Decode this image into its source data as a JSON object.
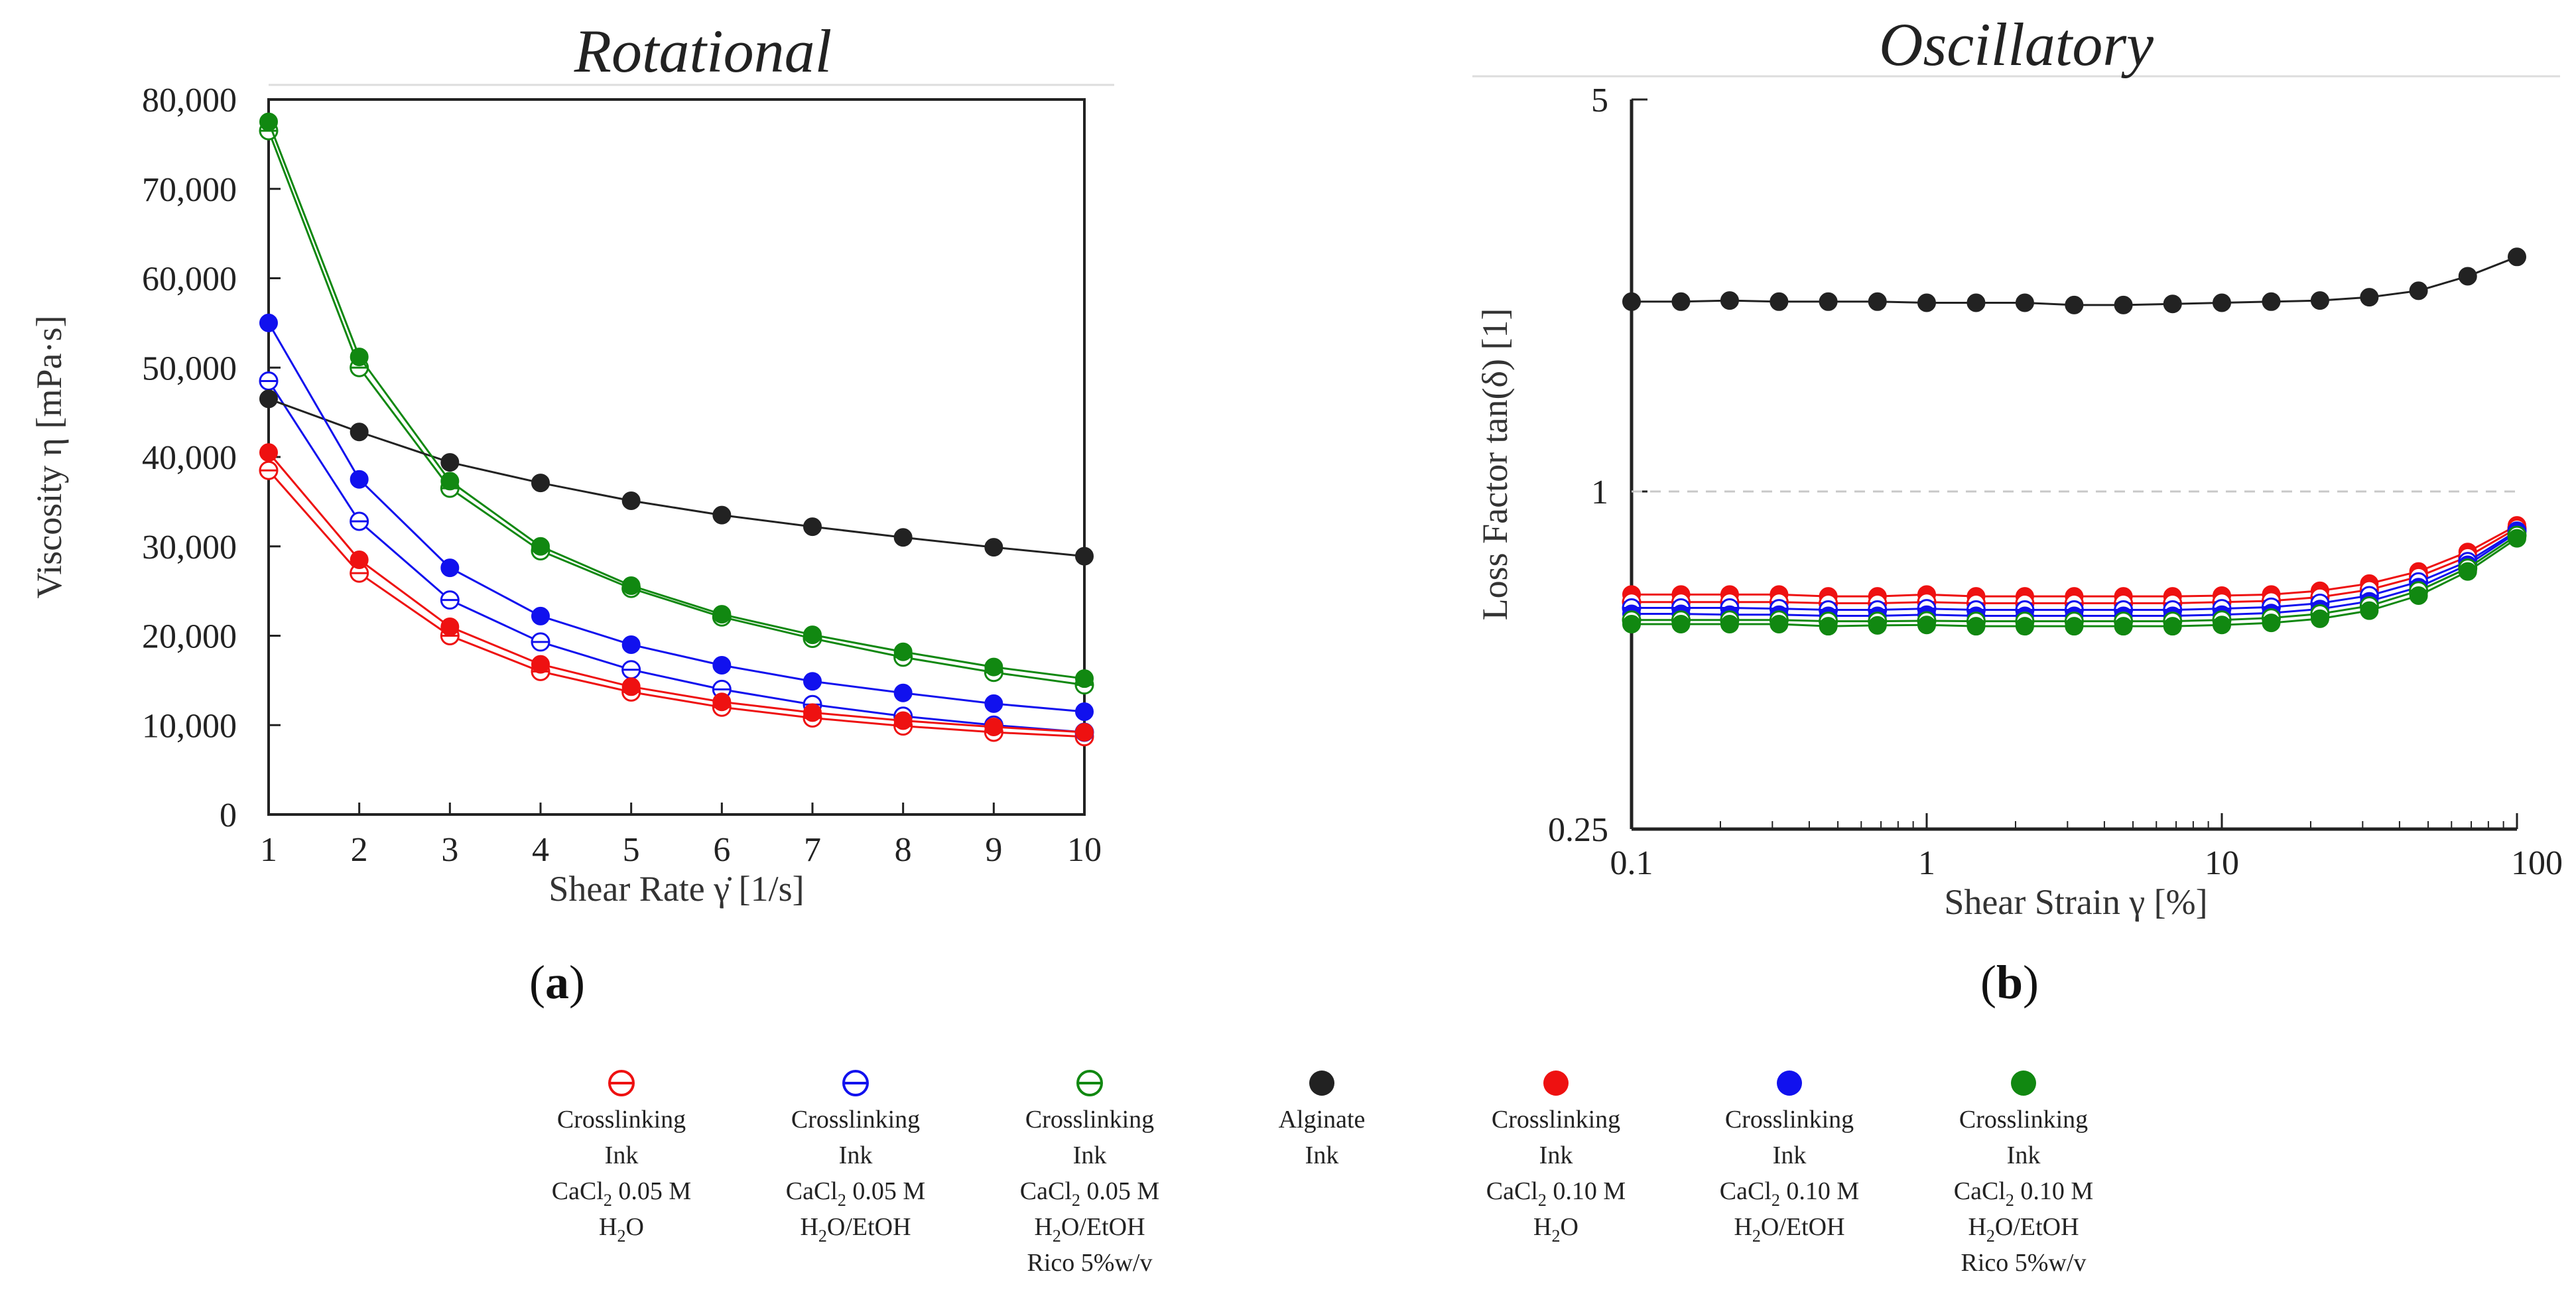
{
  "colors": {
    "red": "#ee1111",
    "blue": "#1111ee",
    "green": "#118811",
    "black": "#222222",
    "axis": "#222222",
    "ref_line": "#c8c8c8"
  },
  "panels": {
    "a": {
      "label_open": "(",
      "label_letter": "a",
      "label_close": ")"
    },
    "b": {
      "label_open": "(",
      "label_letter": "b",
      "label_close": ")"
    }
  },
  "chart_data": [
    {
      "id": "a",
      "type": "line",
      "title": "Rotational",
      "xlabel": "Shear Rate γ̇ [1/s]",
      "ylabel": "Viscosity η [mPa·s]",
      "xlim": [
        1,
        10
      ],
      "ylim": [
        0,
        80000
      ],
      "xticks": [
        1,
        2,
        3,
        4,
        5,
        6,
        7,
        8,
        9,
        10
      ],
      "xtick_labels": [
        "1",
        "2",
        "3",
        "4",
        "5",
        "6",
        "7",
        "8",
        "9",
        "10"
      ],
      "yticks": [
        0,
        10000,
        20000,
        30000,
        40000,
        50000,
        60000,
        70000,
        80000
      ],
      "ytick_labels": [
        "0",
        "10,000",
        "20,000",
        "30,000",
        "40,000",
        "50,000",
        "60,000",
        "70,000",
        "80,000"
      ],
      "x": [
        1,
        2,
        3,
        4,
        5,
        6,
        7,
        8,
        9,
        10
      ],
      "series": [
        {
          "key": "cl005_h2o",
          "color": "red",
          "filled": false,
          "values": [
            38500,
            27000,
            20000,
            16000,
            13700,
            12000,
            10800,
            9900,
            9200,
            8700
          ]
        },
        {
          "key": "cl005_etoh",
          "color": "blue",
          "filled": false,
          "values": [
            48500,
            32800,
            24000,
            19300,
            16200,
            14000,
            12300,
            11000,
            10000,
            9200
          ]
        },
        {
          "key": "cl005_rico",
          "color": "green",
          "filled": false,
          "values": [
            76500,
            50000,
            36500,
            29500,
            25300,
            22100,
            19700,
            17600,
            15900,
            14500
          ]
        },
        {
          "key": "alginate",
          "color": "black",
          "filled": true,
          "values": [
            46500,
            42800,
            39400,
            37100,
            35100,
            33500,
            32200,
            31000,
            29900,
            28900
          ]
        },
        {
          "key": "cl010_h2o",
          "color": "red",
          "filled": true,
          "values": [
            40500,
            28500,
            21000,
            16800,
            14300,
            12600,
            11400,
            10500,
            9800,
            9200
          ]
        },
        {
          "key": "cl010_etoh",
          "color": "blue",
          "filled": true,
          "values": [
            55000,
            37500,
            27600,
            22200,
            19000,
            16700,
            14900,
            13600,
            12400,
            11500
          ]
        },
        {
          "key": "cl010_rico",
          "color": "green",
          "filled": true,
          "values": [
            77500,
            51200,
            37300,
            30000,
            25600,
            22400,
            20100,
            18200,
            16500,
            15200
          ]
        }
      ]
    },
    {
      "id": "b",
      "type": "line",
      "title": "Oscillatory",
      "xlabel": "Shear Strain γ [%]",
      "ylabel": "Loss Factor tan(δ) [1]",
      "xscale": "log",
      "yscale": "log",
      "xlim": [
        0.1,
        100
      ],
      "ylim": [
        0.25,
        5
      ],
      "xticks": [
        0.1,
        1,
        10,
        100
      ],
      "xtick_labels": [
        "0.1",
        "1",
        "10",
        "100"
      ],
      "yticks": [
        0.25,
        1,
        5
      ],
      "ytick_labels": [
        "0.25",
        "1",
        "5"
      ],
      "reference_line": 1,
      "x": [
        0.1,
        0.147,
        0.215,
        0.316,
        0.464,
        0.681,
        1,
        1.47,
        2.15,
        3.16,
        4.64,
        6.81,
        10,
        14.7,
        21.5,
        31.6,
        46.4,
        68.1,
        100
      ],
      "series": [
        {
          "key": "alginate",
          "color": "black",
          "filled": true,
          "values": [
            2.18,
            2.18,
            2.19,
            2.18,
            2.18,
            2.18,
            2.17,
            2.17,
            2.17,
            2.15,
            2.15,
            2.16,
            2.17,
            2.18,
            2.19,
            2.22,
            2.28,
            2.42,
            2.62
          ]
        },
        {
          "key": "cl010_h2o",
          "color": "red",
          "filled": true,
          "values": [
            0.655,
            0.655,
            0.655,
            0.655,
            0.65,
            0.65,
            0.655,
            0.65,
            0.65,
            0.65,
            0.65,
            0.65,
            0.652,
            0.655,
            0.665,
            0.685,
            0.72,
            0.78,
            0.87
          ]
        },
        {
          "key": "cl005_h2o",
          "color": "red",
          "filled": false,
          "values": [
            0.635,
            0.635,
            0.635,
            0.635,
            0.632,
            0.632,
            0.635,
            0.632,
            0.632,
            0.632,
            0.632,
            0.632,
            0.635,
            0.638,
            0.648,
            0.668,
            0.705,
            0.765,
            0.86
          ]
        },
        {
          "key": "cl005_etoh",
          "color": "blue",
          "filled": false,
          "values": [
            0.62,
            0.62,
            0.62,
            0.618,
            0.615,
            0.615,
            0.618,
            0.615,
            0.615,
            0.615,
            0.615,
            0.615,
            0.618,
            0.622,
            0.632,
            0.652,
            0.69,
            0.75,
            0.85
          ]
        },
        {
          "key": "cl010_etoh",
          "color": "blue",
          "filled": true,
          "values": [
            0.605,
            0.605,
            0.603,
            0.603,
            0.6,
            0.6,
            0.603,
            0.6,
            0.6,
            0.6,
            0.6,
            0.6,
            0.603,
            0.607,
            0.617,
            0.637,
            0.675,
            0.74,
            0.845
          ]
        },
        {
          "key": "cl005_rico",
          "color": "green",
          "filled": false,
          "values": [
            0.59,
            0.59,
            0.59,
            0.59,
            0.587,
            0.587,
            0.588,
            0.587,
            0.587,
            0.587,
            0.587,
            0.587,
            0.59,
            0.595,
            0.605,
            0.625,
            0.665,
            0.73,
            0.835
          ]
        },
        {
          "key": "cl010_rico",
          "color": "green",
          "filled": true,
          "values": [
            0.58,
            0.58,
            0.58,
            0.58,
            0.575,
            0.577,
            0.578,
            0.575,
            0.575,
            0.575,
            0.575,
            0.575,
            0.578,
            0.583,
            0.593,
            0.613,
            0.652,
            0.72,
            0.825
          ]
        }
      ]
    }
  ],
  "legend": {
    "placement": "bottom-center",
    "items": [
      {
        "key": "cl005_h2o",
        "color": "red",
        "marker": "open",
        "lines": [
          "Crosslinking",
          "Ink",
          "CaCl",
          "H",
          "O"
        ],
        "row3_sub": "2",
        "row3_tail": " 0.05 M",
        "row4_sub": "2",
        "row4_tail": "O"
      },
      {
        "key": "cl005_etoh",
        "color": "blue",
        "marker": "open",
        "lines": [
          "Crosslinking",
          "Ink",
          "CaCl",
          "H",
          "O/EtOH"
        ],
        "row3_sub": "2",
        "row3_tail": " 0.05 M",
        "row4_sub": "2"
      },
      {
        "key": "cl005_rico",
        "color": "green",
        "marker": "open",
        "lines": [
          "Crosslinking",
          "Ink",
          "CaCl",
          "H",
          "O/EtOH",
          "Rico 5%w/v"
        ],
        "row3_sub": "2",
        "row3_tail": " 0.05 M",
        "row4_sub": "2"
      },
      {
        "key": "alginate",
        "color": "black",
        "marker": "filled",
        "lines": [
          "Alginate",
          "Ink"
        ]
      },
      {
        "key": "cl010_h2o",
        "color": "red",
        "marker": "filled",
        "lines": [
          "Crosslinking",
          "Ink",
          "CaCl",
          "H",
          "O"
        ],
        "row3_sub": "2",
        "row3_tail": " 0.10 M",
        "row4_sub": "2"
      },
      {
        "key": "cl010_etoh",
        "color": "blue",
        "marker": "filled",
        "lines": [
          "Crosslinking",
          "Ink",
          "CaCl",
          "H",
          "O/EtOH"
        ],
        "row3_sub": "2",
        "row3_tail": " 0.10 M",
        "row4_sub": "2"
      },
      {
        "key": "cl010_rico",
        "color": "green",
        "marker": "filled",
        "lines": [
          "Crosslinking",
          "Ink",
          "CaCl",
          "H",
          "O/EtOH",
          "Rico 5%w/v"
        ],
        "row3_sub": "2",
        "row3_tail": " 0.10 M",
        "row4_sub": "2"
      }
    ]
  }
}
